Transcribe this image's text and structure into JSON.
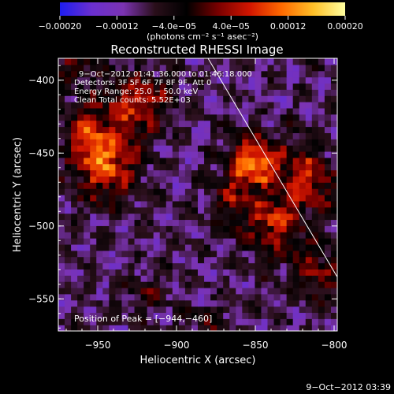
{
  "chart_data": {
    "type": "heatmap",
    "title": "Reconstructed RHESSI Image",
    "xlabel": "Heliocentric X (arcsec)",
    "ylabel": "Heliocentric Y (arcsec)",
    "xlim": [
      -975,
      -798
    ],
    "ylim": [
      -572,
      -385
    ],
    "x_ticks": [
      -950,
      -900,
      -850,
      -800
    ],
    "x_tick_labels": [
      "−950",
      "−900",
      "−850",
      "−800"
    ],
    "y_ticks": [
      -400,
      -450,
      -500,
      -550
    ],
    "y_tick_labels": [
      "−400",
      "−450",
      "−500",
      "−550"
    ],
    "grid": false,
    "colorbar": {
      "min": -0.0002,
      "max": 0.0002,
      "units_label": "(photons cm⁻² s⁻¹ asec⁻²)",
      "ticks": [
        -0.0002,
        -0.00012,
        -4e-05,
        4e-05,
        0.00012,
        0.0002
      ],
      "tick_labels": [
        "−0.00020",
        "−0.00012",
        "−4.0e−05",
        "4.0e−05",
        "0.00012",
        "0.00020"
      ],
      "colors": [
        "#1d1df0",
        "#6a2fd0",
        "#7b33b2",
        "#2a0f1a",
        "#000000",
        "#7a0000",
        "#d21600",
        "#ff6a00",
        "#ffc028",
        "#ffffa0"
      ]
    },
    "hotspots": [
      {
        "x": -945,
        "y": -455,
        "sigma_x": 14,
        "sigma_y": 18,
        "amp": 0.00018
      },
      {
        "x": -925,
        "y": -415,
        "sigma_x": 15,
        "sigma_y": 14,
        "amp": 0.00013
      },
      {
        "x": -958,
        "y": -433,
        "sigma_x": 10,
        "sigma_y": 14,
        "amp": 9e-05
      },
      {
        "x": -850,
        "y": -455,
        "sigma_x": 11,
        "sigma_y": 12,
        "amp": 0.00019
      },
      {
        "x": -838,
        "y": -498,
        "sigma_x": 10,
        "sigma_y": 14,
        "amp": 0.00014
      },
      {
        "x": -818,
        "y": -468,
        "sigma_x": 11,
        "sigma_y": 16,
        "amp": 0.00015
      },
      {
        "x": -862,
        "y": -482,
        "sigma_x": 9,
        "sigma_y": 16,
        "amp": 0.0001
      },
      {
        "x": -812,
        "y": -530,
        "sigma_x": 13,
        "sigma_y": 14,
        "amp": 9e-05
      },
      {
        "x": -965,
        "y": -390,
        "sigma_x": 10,
        "sigma_y": 8,
        "amp": 8e-05
      },
      {
        "x": -920,
        "y": -545,
        "sigma_x": 10,
        "sigma_y": 10,
        "amp": 5e-05
      },
      {
        "x": -880,
        "y": -565,
        "sigma_x": 12,
        "sigma_y": 8,
        "amp": 5e-05
      }
    ],
    "limb_line": {
      "x": [
        -880,
        -798
      ],
      "y": [
        -385,
        -535
      ]
    },
    "info_lines": [
      "9−Oct−2012 01:41:36.000 to 01:46:18.000",
      "Detectors: 3F 5F 6F 7F 8F 9F, Att 0",
      "Energy Range: 25.0 − 50.0 keV",
      "Clean    Total counts: 5.52E+03"
    ],
    "peak_label": "Position of Peak = [−944,−460]"
  },
  "timestamp": "9−Oct−2012 03:39"
}
